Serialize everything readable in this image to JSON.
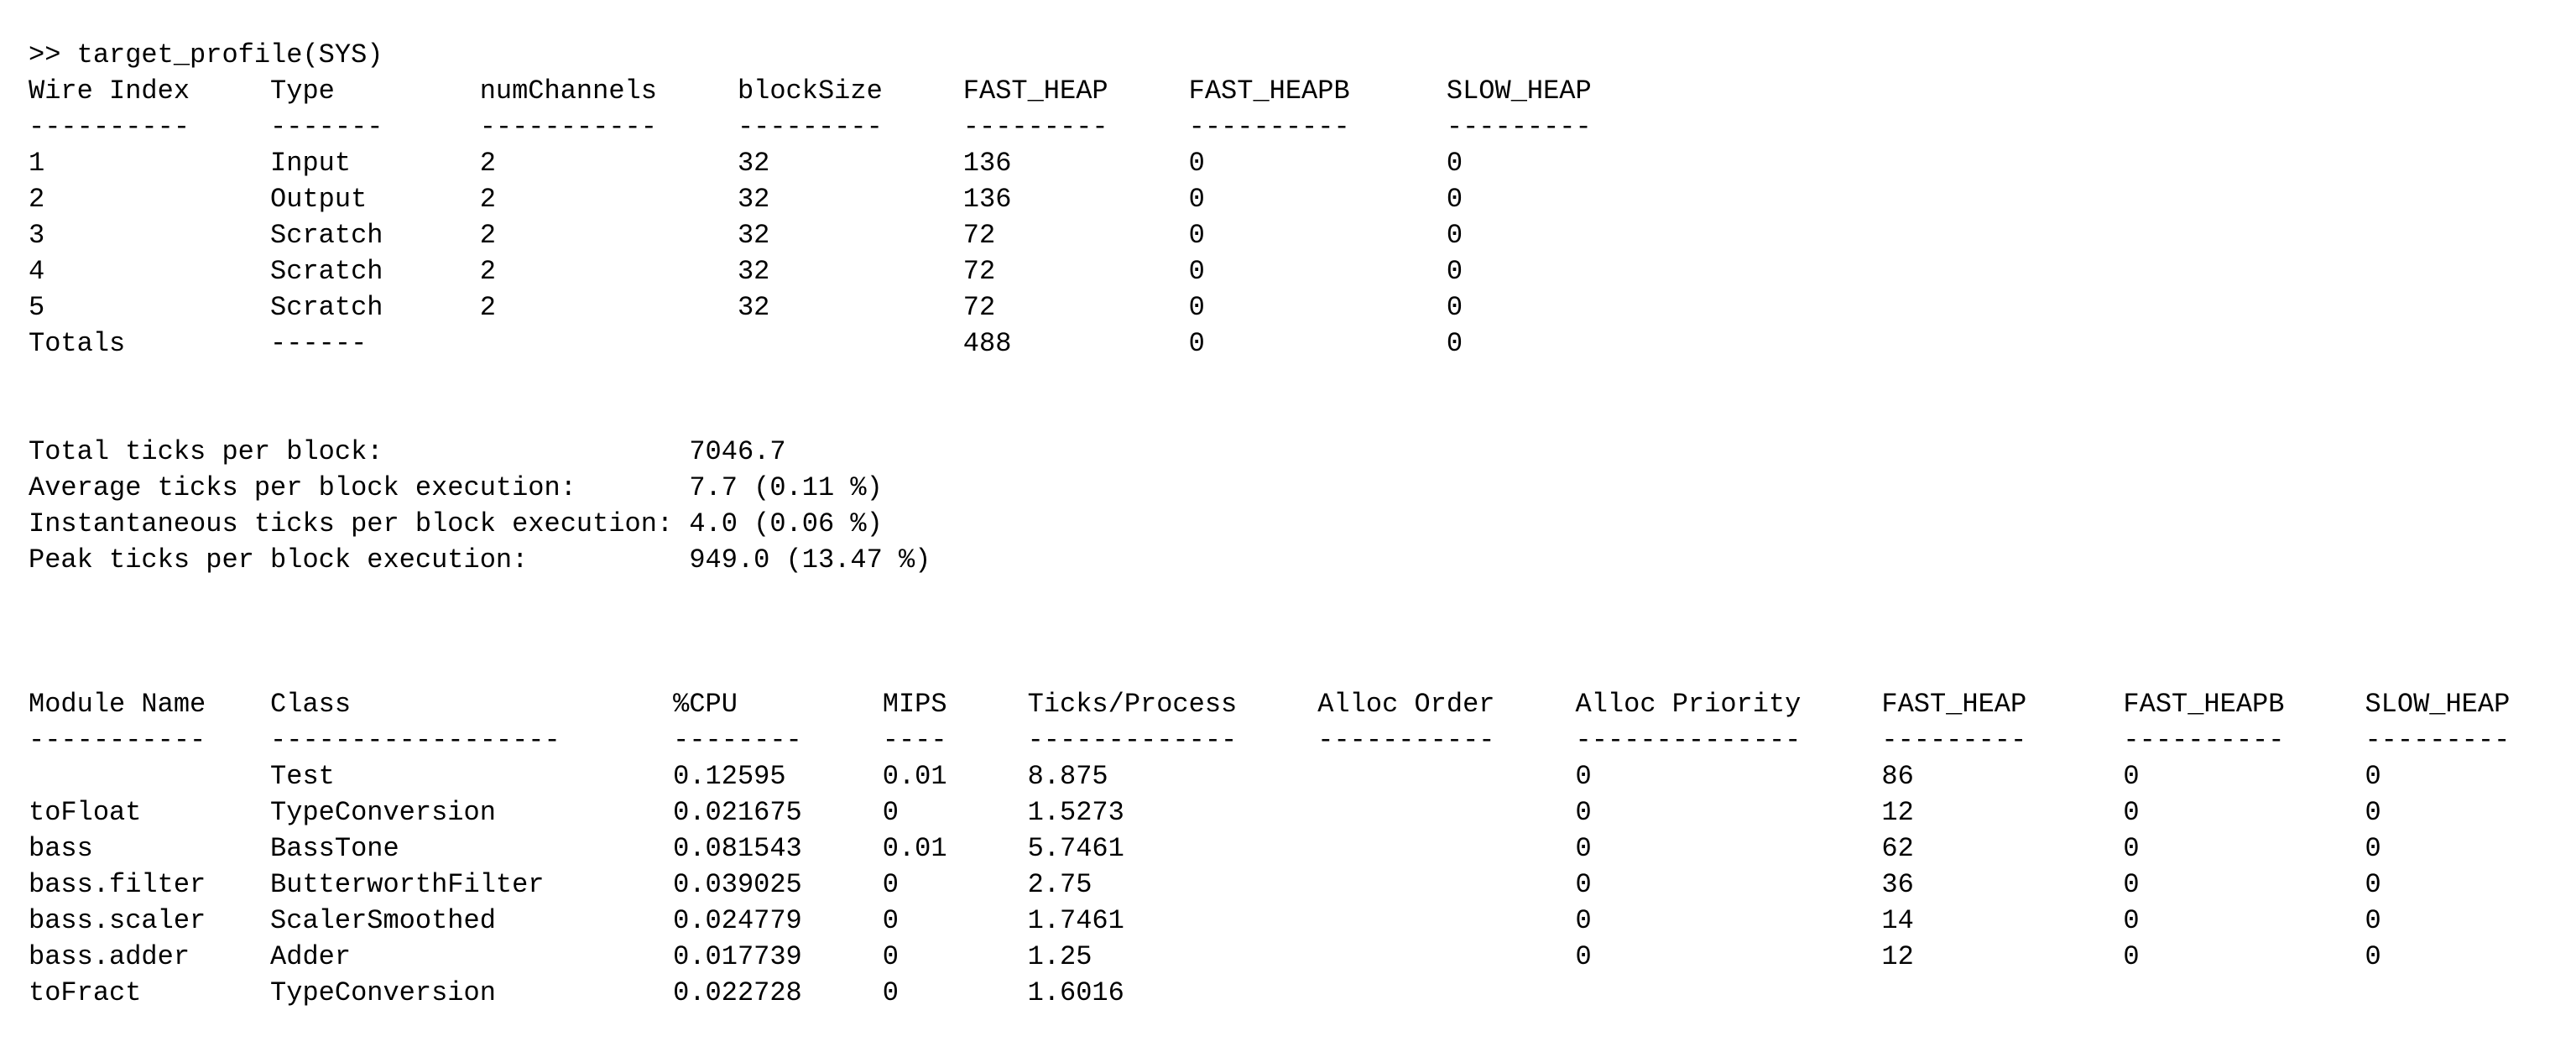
{
  "colors": {
    "background": "#ffffff",
    "text": "#000000"
  },
  "terminal": {
    "command": ">> target_profile(SYS)",
    "wire_table": {
      "headers": [
        "Wire Index",
        "Type",
        "numChannels",
        "blockSize",
        "FAST_HEAP",
        "FAST_HEAPB",
        "SLOW_HEAP"
      ],
      "col_starts": [
        0,
        15,
        28,
        44,
        58,
        72,
        88
      ],
      "dash_widths": [
        10,
        7,
        11,
        9,
        9,
        10,
        9
      ],
      "rows": [
        [
          "1",
          "Input",
          "2",
          "32",
          "136",
          "0",
          "0"
        ],
        [
          "2",
          "Output",
          "2",
          "32",
          "136",
          "0",
          "0"
        ],
        [
          "3",
          "Scratch",
          "2",
          "32",
          "72",
          "0",
          "0"
        ],
        [
          "4",
          "Scratch",
          "2",
          "32",
          "72",
          "0",
          "0"
        ],
        [
          "5",
          "Scratch",
          "2",
          "32",
          "72",
          "0",
          "0"
        ],
        [
          "Totals",
          "------",
          "",
          "",
          "488",
          "0",
          "0"
        ]
      ]
    },
    "stats": {
      "value_col": 41,
      "lines": [
        {
          "label": "Total ticks per block:",
          "value": "7046.7"
        },
        {
          "label": "Average ticks per block execution:",
          "value": "7.7 (0.11 %)"
        },
        {
          "label": "Instantaneous ticks per block execution:",
          "value": "4.0 (0.06 %)"
        },
        {
          "label": "Peak ticks per block execution:",
          "value": "949.0 (13.47 %)"
        }
      ]
    },
    "module_table": {
      "headers": [
        "Module Name",
        "Class",
        "%CPU",
        "MIPS",
        "Ticks/Process",
        "Alloc Order",
        "Alloc Priority",
        "FAST_HEAP",
        "FAST_HEAPB",
        "SLOW_HEAP"
      ],
      "col_starts": [
        0,
        15,
        40,
        53,
        62,
        80,
        96,
        115,
        130,
        145
      ],
      "dash_widths": [
        11,
        18,
        8,
        4,
        13,
        11,
        14,
        9,
        10,
        9
      ],
      "rows": [
        [
          "",
          "Test",
          "0.12595",
          "0.01",
          "8.875",
          "",
          "0",
          "86",
          "0",
          "0"
        ],
        [
          "toFloat",
          "TypeConversion",
          "0.021675",
          "0",
          "1.5273",
          "",
          "0",
          "12",
          "0",
          "0"
        ],
        [
          "bass",
          "BassTone",
          "0.081543",
          "0.01",
          "5.7461",
          "",
          "0",
          "62",
          "0",
          "0"
        ],
        [
          "bass.filter",
          "ButterworthFilter",
          "0.039025",
          "0",
          "2.75",
          "",
          "0",
          "36",
          "0",
          "0"
        ],
        [
          "bass.scaler",
          "ScalerSmoothed",
          "0.024779",
          "0",
          "1.7461",
          "",
          "0",
          "14",
          "0",
          "0"
        ],
        [
          "bass.adder",
          "Adder",
          "0.017739",
          "0",
          "1.25",
          "",
          "0",
          "12",
          "0",
          "0"
        ],
        [
          "toFract",
          "TypeConversion",
          "0.022728",
          "0",
          "1.6016",
          "",
          "",
          "",
          "",
          ""
        ]
      ]
    }
  }
}
